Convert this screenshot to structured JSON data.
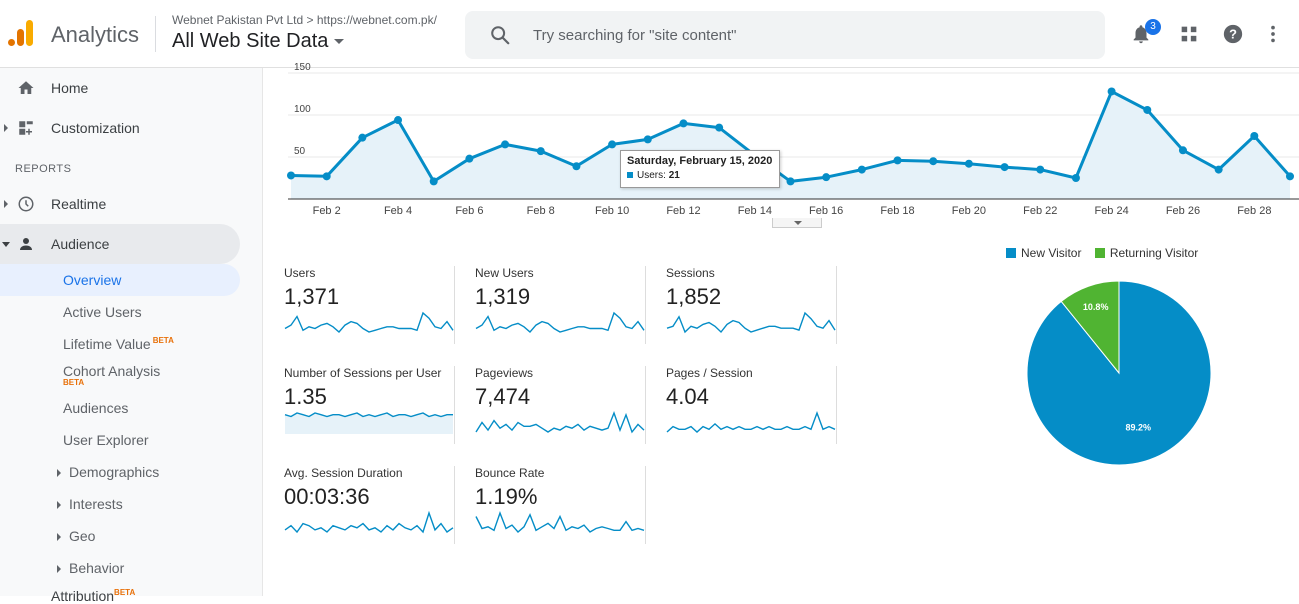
{
  "header": {
    "app_title": "Analytics",
    "account_line": "Webnet Pakistan Pvt Ltd > https://webnet.com.pk/",
    "property_view": "All Web Site Data",
    "search_placeholder": "Try searching for \"site content\"",
    "notification_count": "3",
    "icons": [
      "search-icon",
      "bell-icon",
      "apps-grid-icon",
      "help-icon",
      "more-vert-icon"
    ]
  },
  "sidebar": {
    "items": [
      {
        "label": "Home",
        "icon": "home-icon"
      },
      {
        "label": "Customization",
        "icon": "dashboard-icon"
      }
    ],
    "reports_label": "REPORTS",
    "reports": [
      {
        "label": "Realtime",
        "icon": "clock-icon"
      },
      {
        "label": "Audience",
        "icon": "person-icon"
      }
    ],
    "audience_sub": [
      {
        "label": "Overview"
      },
      {
        "label": "Active Users"
      },
      {
        "label": "Lifetime Value",
        "badge": "BETA"
      },
      {
        "label": "Cohort Analysis",
        "badge": "BETA"
      },
      {
        "label": "Audiences"
      },
      {
        "label": "User Explorer"
      },
      {
        "label": "Demographics"
      },
      {
        "label": "Interests"
      },
      {
        "label": "Geo"
      },
      {
        "label": "Behavior"
      }
    ],
    "partial_item": {
      "label": "Attribution",
      "badge": "BETA"
    }
  },
  "chart_data": [
    {
      "type": "line",
      "series_color": "#058dc7",
      "x_tick_labels": [
        "Feb 2",
        "Feb 4",
        "Feb 6",
        "Feb 8",
        "Feb 10",
        "Feb 12",
        "Feb 14",
        "Feb 16",
        "Feb 18",
        "Feb 20",
        "Feb 22",
        "Feb 24",
        "Feb 26",
        "Feb 28"
      ],
      "x_days": [
        1,
        2,
        3,
        4,
        5,
        6,
        7,
        8,
        9,
        10,
        11,
        12,
        13,
        14,
        15,
        16,
        17,
        18,
        19,
        20,
        21,
        22,
        23,
        24,
        25,
        26,
        27,
        28,
        29
      ],
      "y_ticks": [
        50,
        100,
        150
      ],
      "ylim": [
        0,
        150
      ],
      "series": [
        {
          "name": "Users",
          "values": [
            28,
            27,
            73,
            94,
            21,
            48,
            65,
            57,
            39,
            65,
            71,
            90,
            85,
            52,
            21,
            26,
            35,
            46,
            45,
            42,
            38,
            35,
            25,
            128,
            106,
            58,
            35,
            75,
            27
          ]
        }
      ],
      "tooltip": {
        "title": "Saturday, February 15, 2020",
        "series": "Users",
        "value": "21",
        "day_index": 14
      }
    },
    {
      "type": "pie",
      "legend_position": "top",
      "slices": [
        {
          "name": "New Visitor",
          "value": 89.2,
          "label": "89.2%",
          "color": "#058dc7"
        },
        {
          "name": "Returning Visitor",
          "value": 10.8,
          "label": "10.8%",
          "color": "#50b432"
        }
      ]
    }
  ],
  "metrics": [
    {
      "label": "Users",
      "value": "1,371",
      "filled": false,
      "spark": [
        5,
        7,
        12,
        4,
        6,
        5,
        7,
        8,
        6,
        3,
        7,
        9,
        8,
        5,
        3,
        4,
        5,
        6,
        6,
        5,
        5,
        5,
        4,
        14,
        11,
        6,
        5,
        9,
        4
      ]
    },
    {
      "label": "New Users",
      "value": "1,319",
      "filled": false,
      "spark": [
        5,
        7,
        12,
        4,
        6,
        5,
        7,
        8,
        6,
        3,
        7,
        9,
        8,
        5,
        3,
        4,
        5,
        6,
        6,
        5,
        5,
        5,
        4,
        14,
        11,
        6,
        5,
        9,
        4
      ]
    },
    {
      "label": "Sessions",
      "value": "1,852",
      "filled": false,
      "spark": [
        6,
        7,
        12,
        4,
        7,
        6,
        8,
        9,
        7,
        4,
        8,
        10,
        9,
        6,
        4,
        5,
        6,
        7,
        7,
        6,
        6,
        6,
        5,
        14,
        11,
        7,
        6,
        10,
        5
      ]
    },
    {
      "label": "Number of Sessions per User",
      "value": "1.35",
      "filled": true,
      "spark": [
        10,
        9,
        11,
        10,
        9,
        11,
        10,
        9,
        10,
        10,
        9,
        10,
        11,
        9,
        10,
        9,
        10,
        11,
        9,
        10,
        10,
        9,
        10,
        11,
        9,
        10,
        9,
        10,
        10
      ]
    },
    {
      "label": "Pageviews",
      "value": "7,474",
      "filled": false,
      "spark": [
        4,
        9,
        5,
        10,
        6,
        8,
        5,
        9,
        7,
        7,
        8,
        6,
        4,
        6,
        5,
        7,
        6,
        8,
        5,
        7,
        6,
        5,
        6,
        14,
        5,
        13,
        4,
        8,
        5
      ]
    },
    {
      "label": "Pages / Session",
      "value": "4.04",
      "filled": false,
      "spark": [
        5,
        7,
        6,
        6,
        7,
        5,
        7,
        6,
        8,
        6,
        7,
        6,
        7,
        6,
        6,
        7,
        6,
        7,
        6,
        6,
        7,
        6,
        6,
        7,
        6,
        12,
        6,
        7,
        6
      ]
    },
    {
      "label": "Avg. Session Duration",
      "value": "00:03:36",
      "filled": false,
      "spark": [
        6,
        8,
        5,
        9,
        8,
        6,
        7,
        5,
        8,
        7,
        6,
        8,
        7,
        9,
        6,
        7,
        5,
        8,
        6,
        9,
        7,
        6,
        8,
        5,
        14,
        6,
        9,
        5,
        7
      ]
    },
    {
      "label": "Bounce Rate",
      "value": "1.19%",
      "filled": false,
      "spark": [
        12,
        5,
        6,
        4,
        14,
        5,
        7,
        3,
        6,
        13,
        4,
        6,
        8,
        5,
        12,
        4,
        6,
        5,
        7,
        3,
        5,
        6,
        5,
        4,
        4,
        9,
        4,
        5,
        4
      ]
    }
  ]
}
